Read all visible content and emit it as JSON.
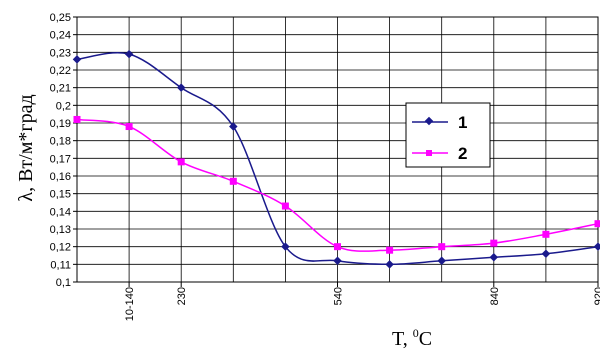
{
  "chart_data": {
    "type": "line",
    "ylabel": "λ, Вт/м*град",
    "xlabel_main": "T, ",
    "xlabel_sup": "0",
    "xlabel_unit": "C",
    "ylim": [
      0.1,
      0.25
    ],
    "y_ticks": [
      "0,1",
      "0,11",
      "0,12",
      "0,13",
      "0,14",
      "0,15",
      "0,16",
      "0,17",
      "0,18",
      "0,19",
      "0,2",
      "0,21",
      "0,22",
      "0,23",
      "0,24",
      "0,25"
    ],
    "x_count": 11,
    "x_tick_labels": [
      {
        "index": 1,
        "label": "10-140"
      },
      {
        "index": 2,
        "label": "230"
      },
      {
        "index": 5,
        "label": "540"
      },
      {
        "index": 8,
        "label": "840"
      },
      {
        "index": 10,
        "label": "920"
      }
    ],
    "grid": true,
    "legend_position": "right",
    "series": [
      {
        "name": "1",
        "color": "#1a1a8c",
        "marker": "diamond",
        "values": [
          0.226,
          0.229,
          0.21,
          0.188,
          0.12,
          0.112,
          0.11,
          0.112,
          0.114,
          0.116,
          0.12
        ]
      },
      {
        "name": "2",
        "color": "#ff00ff",
        "marker": "square",
        "values": [
          0.192,
          0.188,
          0.168,
          0.157,
          0.143,
          0.12,
          0.118,
          0.12,
          0.122,
          0.127,
          0.133
        ]
      }
    ]
  }
}
